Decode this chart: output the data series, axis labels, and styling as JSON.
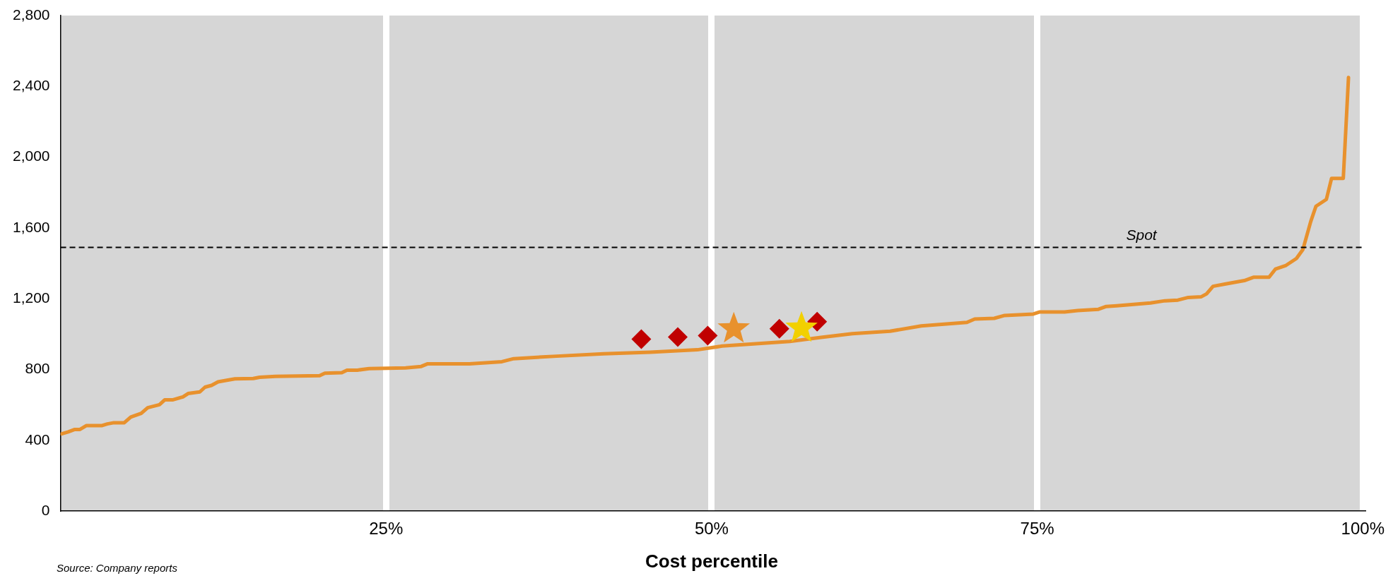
{
  "chart_data": {
    "type": "line",
    "xlabel": "Cost percentile",
    "annotations": [
      "Source: Company reports"
    ],
    "xlim": [
      0,
      100
    ],
    "xticks": [
      {
        "value": 25,
        "label": "25%"
      },
      {
        "value": 50,
        "label": "50%"
      },
      {
        "value": 75,
        "label": "75%"
      },
      {
        "value": 100,
        "label": "100%"
      }
    ],
    "ylim": [
      0,
      2800
    ],
    "yticks": [
      0,
      400,
      800,
      {
        "value": 1200,
        "label": "1,200"
      },
      {
        "value": 1600,
        "label": "1,600"
      },
      {
        "value": 2000,
        "label": "2,000"
      },
      {
        "value": 2400,
        "label": "2,400"
      },
      {
        "value": 2800,
        "label": "2,800"
      }
    ],
    "grid": "x",
    "legend": false,
    "ref_lines": [
      {
        "axis": "y",
        "value": 1490,
        "label": "Spot",
        "color": "#000000",
        "line_style": "dashed"
      }
    ],
    "series": [
      {
        "type": "line",
        "color": "#e8912d",
        "marker": "none",
        "x": [
          0.1,
          0.6,
          1.1,
          1.5,
          2.0,
          3.2,
          3.6,
          4.1,
          4.9,
          5.4,
          6.2,
          6.7,
          7.6,
          8.0,
          8.6,
          9.4,
          9.8,
          10.7,
          11.1,
          11.6,
          12.1,
          12.7,
          13.4,
          14.8,
          15.3,
          16.5,
          19.9,
          20.3,
          21.6,
          22.0,
          22.8,
          23.7,
          26.5,
          27.7,
          28.2,
          31.4,
          33.9,
          34.8,
          38.1,
          41.7,
          45.3,
          48.9,
          50.8,
          53.6,
          56.0,
          58.4,
          60.8,
          63.7,
          66.1,
          69.6,
          70.2,
          71.7,
          72.5,
          73.6,
          74.7,
          75.2,
          77.1,
          78.1,
          79.7,
          80.3,
          81.1,
          83.7,
          84.8,
          85.8,
          86.6,
          87.6,
          88.0,
          88.5,
          89.4,
          90.9,
          91.6,
          92.8,
          93.3,
          94.1,
          94.9,
          95.4,
          96.0,
          96.4,
          97.2,
          97.6,
          98.5,
          98.9
        ],
        "values": [
          436,
          447,
          461,
          461,
          483,
          483,
          492,
          499,
          499,
          531,
          552,
          584,
          601,
          628,
          628,
          645,
          664,
          673,
          700,
          710,
          730,
          738,
          747,
          749,
          756,
          761,
          765,
          779,
          782,
          796,
          796,
          805,
          809,
          817,
          832,
          832,
          844,
          861,
          875,
          888,
          897,
          911,
          932,
          946,
          958,
          981,
          1002,
          1016,
          1046,
          1066,
          1085,
          1089,
          1105,
          1109,
          1113,
          1125,
          1125,
          1133,
          1140,
          1156,
          1160,
          1176,
          1188,
          1192,
          1207,
          1211,
          1227,
          1270,
          1282,
          1302,
          1321,
          1321,
          1368,
          1388,
          1427,
          1478,
          1636,
          1722,
          1761,
          1880,
          1880,
          2450
        ]
      },
      {
        "type": "scatter",
        "color": "#c00000",
        "marker": "diamond",
        "x": [
          44.6,
          47.4,
          49.7,
          55.2,
          56.3,
          58.1
        ],
        "values": [
          971,
          983,
          991,
          1030,
          null,
          1070
        ]
      },
      {
        "type": "scatter",
        "color": "#e8912d",
        "marker": "star",
        "x": [
          51.7
        ],
        "values": [
          1030
        ]
      },
      {
        "type": "scatter",
        "color": "#f2d000",
        "marker": "star",
        "x": [
          56.9
        ],
        "values": [
          1034
        ]
      }
    ]
  }
}
